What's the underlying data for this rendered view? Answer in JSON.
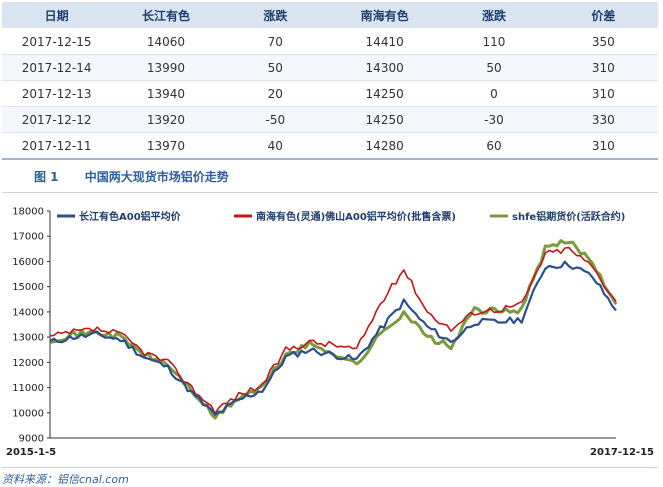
{
  "table": {
    "headers": [
      "日期",
      "长江有色",
      "涨跌",
      "南海有色",
      "涨跌",
      "价差"
    ],
    "rows": [
      [
        "2017-12-15",
        "14060",
        "70",
        "14410",
        "110",
        "350"
      ],
      [
        "2017-12-14",
        "13990",
        "50",
        "14300",
        "50",
        "310"
      ],
      [
        "2017-12-13",
        "13940",
        "20",
        "14250",
        "0",
        "310"
      ],
      [
        "2017-12-12",
        "13920",
        "-50",
        "14250",
        "-30",
        "330"
      ],
      [
        "2017-12-11",
        "13970",
        "40",
        "14280",
        "60",
        "310"
      ]
    ]
  },
  "figure": {
    "number": "图 1",
    "title": "中国两大现货市场铝价走势"
  },
  "source": "资料来源：铝信cnal.com",
  "chart_data": {
    "type": "line",
    "ylim": [
      9000,
      18000
    ],
    "yticks": [
      9000,
      10000,
      11000,
      12000,
      13000,
      14000,
      15000,
      16000,
      17000,
      18000
    ],
    "x_start_label": "2015-1-5",
    "x_end_label": "2017-12-15",
    "x": [
      "2015-01",
      "2015-03",
      "2015-05",
      "2015-07",
      "2015-09",
      "2015-10",
      "2015-11",
      "2015-12",
      "2016-01",
      "2016-03",
      "2016-05",
      "2016-07",
      "2016-09",
      "2016-10",
      "2016-11",
      "2016-12",
      "2017-01",
      "2017-03",
      "2017-04",
      "2017-06",
      "2017-08",
      "2017-09",
      "2017-10",
      "2017-11",
      "2017-12"
    ],
    "series": [
      {
        "name": "长江有色A00铝平均价",
        "color": "#2b4f8c",
        "values": [
          12800,
          13000,
          13100,
          12900,
          12200,
          11800,
          10800,
          9900,
          10500,
          10900,
          12200,
          12500,
          12300,
          12100,
          13300,
          14400,
          13400,
          12800,
          13600,
          13600,
          13700,
          15800,
          15900,
          15400,
          14060
        ]
      },
      {
        "name": "南海有色(灵通)佛山A00铝平均价(批售含票)",
        "color": "#c0171b",
        "values": [
          13000,
          13200,
          13300,
          13100,
          12400,
          12000,
          11000,
          10100,
          10700,
          11100,
          12500,
          12800,
          12700,
          12500,
          14300,
          15700,
          14000,
          13300,
          14000,
          14100,
          14300,
          16300,
          16500,
          15800,
          14410
        ]
      },
      {
        "name": "shfe铝期货价(活跃合约)",
        "color": "#7a9a3c",
        "values": [
          12900,
          13100,
          13200,
          13000,
          12300,
          11900,
          10900,
          9800,
          10600,
          11000,
          12300,
          12700,
          12400,
          11900,
          13100,
          14000,
          13000,
          12600,
          14100,
          14000,
          14100,
          16500,
          16800,
          16000,
          14300
        ]
      }
    ]
  }
}
